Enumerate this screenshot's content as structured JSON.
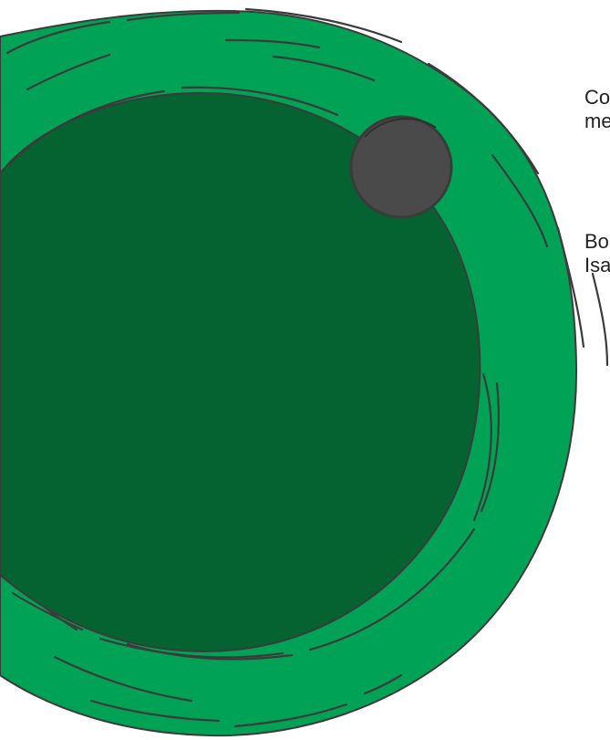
{
  "colors": {
    "outer_ring": "#00a355",
    "inner_disc": "#046330",
    "small_circle": "#4a4a4a",
    "stroke": "#3b3b3b",
    "background": "#ffffff"
  },
  "side_text": {
    "block1": {
      "line1": "Co",
      "line2": "me"
    },
    "block2": {
      "line1": "Bo",
      "line2": "Isa"
    }
  }
}
